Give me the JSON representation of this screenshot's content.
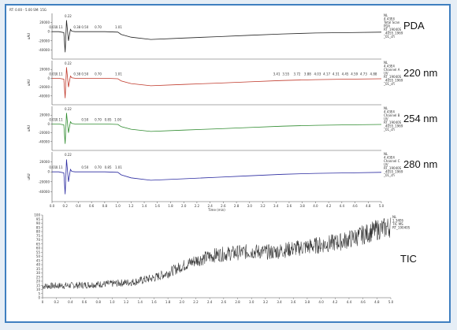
{
  "figure": {
    "header_text": "RT: 0.00 - 5.00   SM: 15G",
    "x_axis_title": "Time (min)"
  },
  "colors": {
    "frame": "#3f7fc0",
    "pda": "#222222",
    "nm220": "#c0392b",
    "nm254": "#2e8b2e",
    "nm280": "#2a2aa0",
    "tic": "#333333"
  },
  "chart_data": [
    {
      "type": "line",
      "label": "PDA",
      "xlim": [
        0,
        5
      ],
      "ylim": [
        -60000,
        40000
      ],
      "y_ticks": [
        "20000",
        "0",
        "-20000",
        "-40000"
      ],
      "peak_labels": [
        {
          "x": 0.22,
          "text": "0.22"
        },
        {
          "x": 0.01,
          "text": "0.01"
        },
        {
          "x": 0.11,
          "text": "0.11"
        },
        {
          "x": 0.38,
          "text": "0.38"
        },
        {
          "x": 0.5,
          "text": "0.50"
        },
        {
          "x": 0.7,
          "text": "0.70"
        },
        {
          "x": 1.01,
          "text": "1.01"
        }
      ],
      "x": [
        0,
        0.1,
        0.18,
        0.2,
        0.22,
        0.25,
        0.28,
        0.3,
        0.35,
        0.5,
        0.8,
        1.0,
        1.05,
        1.2,
        1.5,
        2.0,
        2.5,
        3.0,
        3.5,
        4.0,
        4.5,
        5.0
      ],
      "y": [
        0,
        0,
        -2000,
        -45000,
        25000,
        -20000,
        5000,
        1000,
        0,
        0,
        0,
        -1000,
        -6000,
        -12000,
        -17000,
        -14000,
        -11000,
        -8000,
        -5000,
        -3000,
        -2000,
        -1000
      ],
      "meta": "NL\n4.43E4\nTotal Scan\nPDA\nRT_19040S\n_4055_1969\n_01_ch"
    },
    {
      "type": "line",
      "label": "220 nm",
      "xlim": [
        0,
        5
      ],
      "ylim": [
        -60000,
        40000
      ],
      "y_ticks": [
        "20000",
        "0",
        "-20000",
        "-40000"
      ],
      "peak_labels": [
        {
          "x": 0.22,
          "text": "0.22"
        },
        {
          "x": 0.01,
          "text": "0.01"
        },
        {
          "x": 0.11,
          "text": "0.11"
        },
        {
          "x": 0.38,
          "text": "0.38"
        },
        {
          "x": 0.5,
          "text": "0.50"
        },
        {
          "x": 0.7,
          "text": "0.70"
        },
        {
          "x": 1.01,
          "text": "1.01"
        },
        {
          "x": 3.41,
          "text": "3.41"
        },
        {
          "x": 3.55,
          "text": "3.55"
        },
        {
          "x": 3.72,
          "text": "3.72"
        },
        {
          "x": 3.88,
          "text": "3.88"
        },
        {
          "x": 4.03,
          "text": "4.03"
        },
        {
          "x": 4.17,
          "text": "4.17"
        },
        {
          "x": 4.31,
          "text": "4.31"
        },
        {
          "x": 4.45,
          "text": "4.45"
        },
        {
          "x": 4.59,
          "text": "4.59"
        },
        {
          "x": 4.73,
          "text": "4.73"
        },
        {
          "x": 4.88,
          "text": "4.88"
        }
      ],
      "x": [
        0,
        0.1,
        0.18,
        0.2,
        0.22,
        0.25,
        0.28,
        0.3,
        0.35,
        0.5,
        0.8,
        1.0,
        1.05,
        1.2,
        1.5,
        2.0,
        2.5,
        3.0,
        3.5,
        4.0,
        4.5,
        5.0
      ],
      "y": [
        0,
        0,
        -2000,
        -45000,
        25000,
        -20000,
        5000,
        1000,
        0,
        0,
        0,
        -1000,
        -6000,
        -12000,
        -17000,
        -14000,
        -11000,
        -8000,
        -5000,
        -3000,
        -2000,
        -1000
      ],
      "meta": "NL\n4.43E4\nChannel A\nUV\nRT_19040S\n_4055_1969\n_01_ch"
    },
    {
      "type": "line",
      "label": "254 nm",
      "xlim": [
        0,
        5
      ],
      "ylim": [
        -60000,
        40000
      ],
      "y_ticks": [
        "20000",
        "0",
        "-20000",
        "-40000"
      ],
      "peak_labels": [
        {
          "x": 0.22,
          "text": "0.22"
        },
        {
          "x": 0.01,
          "text": "0.01"
        },
        {
          "x": 0.11,
          "text": "0.11"
        },
        {
          "x": 0.5,
          "text": "0.50"
        },
        {
          "x": 0.7,
          "text": "0.70"
        },
        {
          "x": 0.85,
          "text": "0.85"
        },
        {
          "x": 1.0,
          "text": "1.00"
        }
      ],
      "x": [
        0,
        0.1,
        0.18,
        0.2,
        0.22,
        0.25,
        0.28,
        0.3,
        0.35,
        0.5,
        0.8,
        1.0,
        1.05,
        1.2,
        1.5,
        2.0,
        2.5,
        3.0,
        3.5,
        4.0,
        4.5,
        5.0
      ],
      "y": [
        0,
        0,
        -2000,
        -45000,
        25000,
        -20000,
        5000,
        1000,
        0,
        0,
        0,
        -1000,
        -6000,
        -12000,
        -17000,
        -14000,
        -11000,
        -8000,
        -5000,
        -3000,
        -2000,
        -1000
      ],
      "meta": "NL\n4.43E4\nChannel B\nUV\nRT_19040S\n_4055_1969\n_01_ch"
    },
    {
      "type": "line",
      "label": "280 nm",
      "xlim": [
        0,
        5
      ],
      "ylim": [
        -60000,
        40000
      ],
      "y_ticks": [
        "20000",
        "0",
        "-20000",
        "-40000"
      ],
      "peak_labels": [
        {
          "x": 0.22,
          "text": "0.22"
        },
        {
          "x": 0.01,
          "text": "0.01"
        },
        {
          "x": 0.11,
          "text": "0.11"
        },
        {
          "x": 0.5,
          "text": "0.50"
        },
        {
          "x": 0.7,
          "text": "0.70"
        },
        {
          "x": 0.85,
          "text": "0.85"
        },
        {
          "x": 1.01,
          "text": "1.01"
        }
      ],
      "x": [
        0,
        0.1,
        0.18,
        0.2,
        0.22,
        0.25,
        0.28,
        0.3,
        0.35,
        0.5,
        0.8,
        1.0,
        1.05,
        1.2,
        1.5,
        2.0,
        2.5,
        3.0,
        3.5,
        4.0,
        4.5,
        5.0
      ],
      "y": [
        0,
        0,
        -2000,
        -45000,
        25000,
        -20000,
        5000,
        1000,
        0,
        0,
        0,
        -1000,
        -6000,
        -12000,
        -17000,
        -14000,
        -11000,
        -8000,
        -5000,
        -3000,
        -2000,
        -1000
      ],
      "meta": "NL\n4.43E4\nChannel C\nUV\nRT_19040S\n_4055_1969\n_01_ch"
    },
    {
      "type": "line",
      "label": "TIC",
      "xlim": [
        0,
        5
      ],
      "ylim": [
        0,
        100
      ],
      "y_ticks": [
        "100",
        "95",
        "90",
        "85",
        "80",
        "75",
        "70",
        "65",
        "60",
        "55",
        "50",
        "45",
        "40",
        "35",
        "30",
        "25",
        "20",
        "15",
        "10",
        "5",
        "0"
      ],
      "x_ticks": [
        "0",
        "0.2",
        "0.4",
        "0.6",
        "0.8",
        "1.0",
        "1.2",
        "1.4",
        "1.6",
        "1.8",
        "2.0",
        "2.2",
        "2.4",
        "2.6",
        "2.8",
        "3.0",
        "3.2",
        "3.4",
        "3.6",
        "3.8",
        "4.0",
        "4.2",
        "4.4",
        "4.6",
        "4.8",
        "5.0"
      ],
      "trend_x": [
        0,
        0.5,
        1.0,
        1.3,
        1.6,
        1.8,
        2.0,
        2.2,
        2.5,
        3.0,
        3.3,
        3.5,
        4.0,
        4.3,
        4.6,
        4.8,
        5.0
      ],
      "trend_y": [
        14,
        15,
        17,
        19,
        24,
        30,
        38,
        45,
        52,
        56,
        55,
        58,
        64,
        68,
        76,
        82,
        86
      ],
      "noise": 9,
      "meta": "NL\n1.34E6\nTIC MS\nRT_19040S"
    }
  ],
  "x_ticks": [
    "0.0",
    "0.2",
    "0.4",
    "0.6",
    "0.8",
    "1.0",
    "1.2",
    "1.4",
    "1.6",
    "1.8",
    "2.0",
    "2.2",
    "2.4",
    "2.6",
    "2.8",
    "3.0",
    "3.2",
    "3.4",
    "3.6",
    "3.8",
    "4.0",
    "4.2",
    "4.4",
    "4.6",
    "4.8",
    "5.0"
  ]
}
